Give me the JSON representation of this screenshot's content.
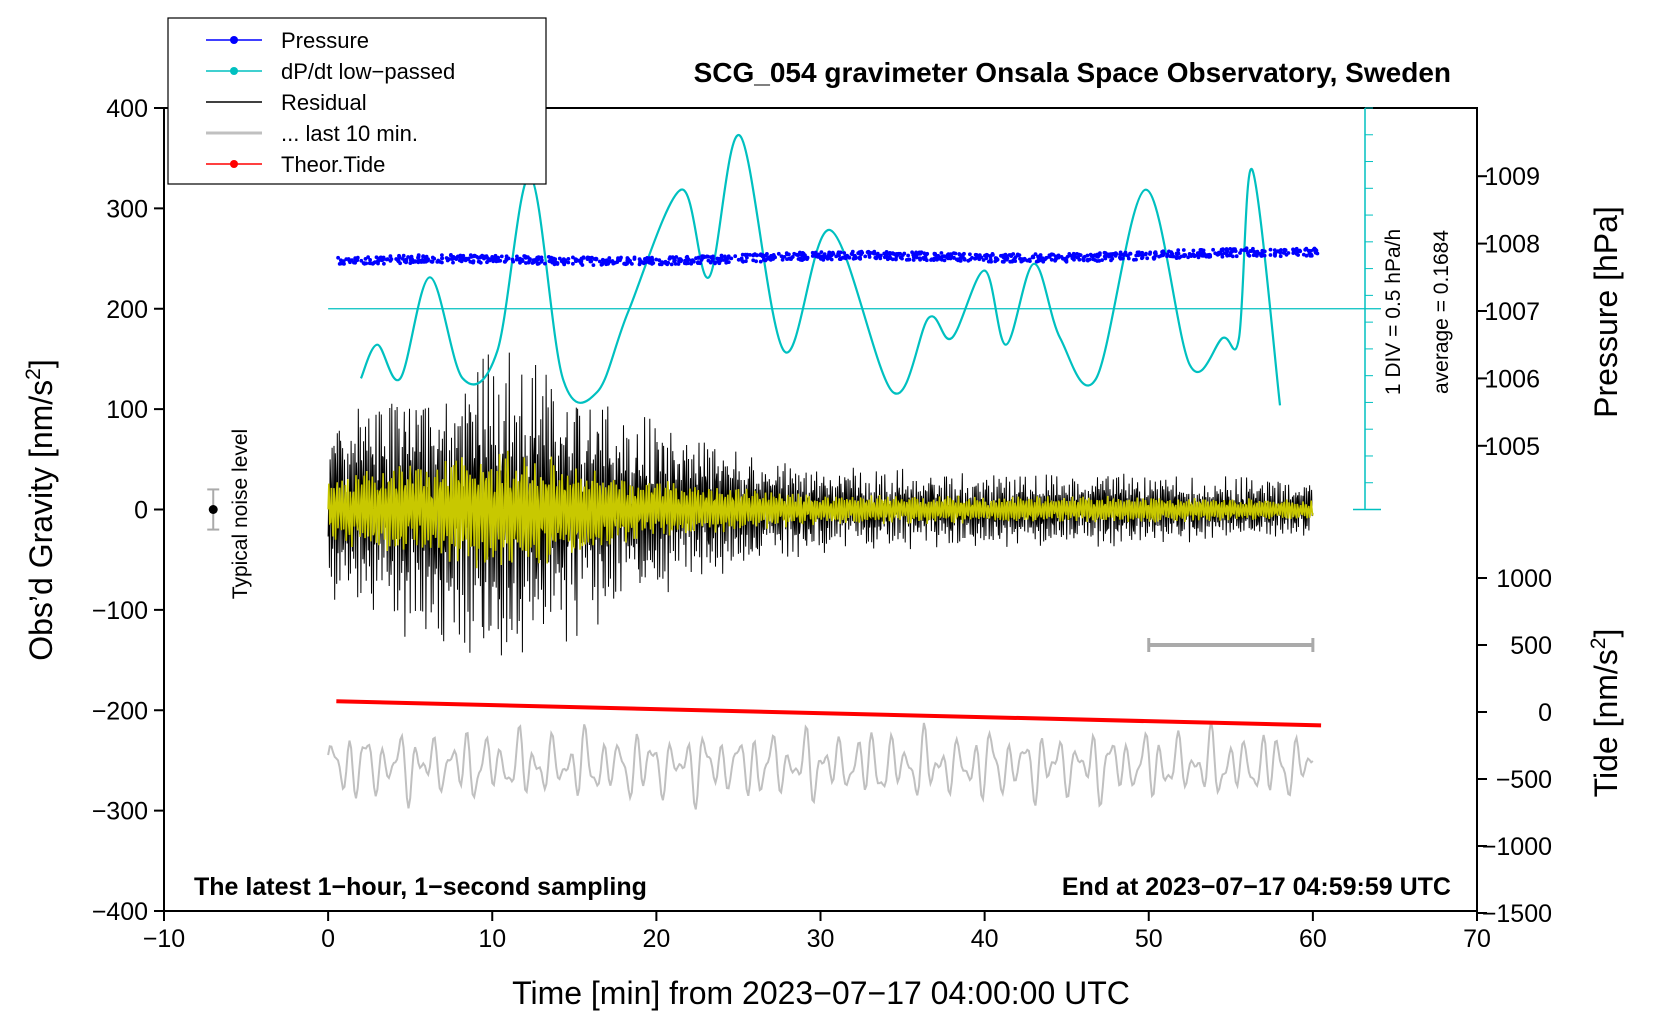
{
  "chart_data": {
    "type": "line",
    "title": "SCG_054 gravimeter Onsala Space Observatory, Sweden",
    "xlabel": "Time [min] from 2023−07−17 04:00:00 UTC",
    "ylabel_left_main": "Obs’d Gravity [nm/s",
    "ylabel_left_sup": "2",
    "ylabel_left_tail": "]",
    "ylabel_right_pressure": "Pressure [hPa]",
    "ylabel_right_tide_main": "Tide [nm/s",
    "ylabel_right_tide_sup": "2",
    "ylabel_right_tide_tail": "]",
    "xlim": [
      -10,
      70
    ],
    "ylim": [
      -400,
      400
    ],
    "pressure_lim": [
      1004,
      1010
    ],
    "tide_lim": [
      -1500,
      1500
    ],
    "x_ticks": [
      -10,
      0,
      10,
      20,
      30,
      40,
      50,
      60,
      70
    ],
    "x_tick_labels": [
      "−10",
      "0",
      "10",
      "20",
      "30",
      "40",
      "50",
      "60",
      "70"
    ],
    "y_ticks": [
      -400,
      -300,
      -200,
      -100,
      0,
      100,
      200,
      300,
      400
    ],
    "y_tick_labels": [
      "−400",
      "−300",
      "−200",
      "−100",
      "0",
      "100",
      "200",
      "300",
      "400"
    ],
    "pressure_ticks": [
      1005,
      1006,
      1007,
      1008,
      1009
    ],
    "pressure_tick_labels": [
      "1005",
      "1006",
      "1007",
      "1008",
      "1009"
    ],
    "tide_ticks": [
      -1500,
      -1000,
      -500,
      0,
      500,
      1000
    ],
    "tide_tick_labels": [
      "−1500",
      "−1000",
      "−500",
      "0",
      "500",
      "1000"
    ],
    "legend": {
      "position": "top-left",
      "entries": [
        {
          "label": "Pressure",
          "color": "#0000ff",
          "marker": true
        },
        {
          "label": "dP/dt low−passed",
          "color": "#00c0c0",
          "marker": true
        },
        {
          "label": "Residual",
          "color": "#000000",
          "marker": false
        },
        {
          "label": "... last 10 min.",
          "color": "#c0c0c0",
          "marker": false
        },
        {
          "label": "Theor.Tide",
          "color": "#ff0000",
          "marker": true
        }
      ]
    },
    "colors": {
      "pressure": "#0000ff",
      "dpdt": "#00c0c0",
      "residual": "#000000",
      "last10": "#c0c0c0",
      "tide": "#ff0000",
      "filtered": "#c8c800",
      "noise_bar": "#aaaaaa"
    },
    "series": {
      "pressure": {
        "name": "Pressure",
        "x_range": [
          0.5,
          60.3
        ],
        "start_hpa": 1007.73,
        "end_hpa": 1007.85,
        "scatter_hpa": 0.06
      },
      "dpdt": {
        "name": "dP/dt low−passed",
        "x": [
          2.0,
          3.0,
          4.4,
          6.2,
          8.2,
          10.3,
          12.3,
          14.3,
          16.4,
          18.3,
          21.5,
          23.2,
          25.1,
          27.8,
          30.6,
          34.4,
          36.6,
          38.0,
          40.0,
          41.3,
          43.0,
          44.6,
          46.8,
          49.8,
          52.5,
          54.5,
          55.5,
          56.3,
          58.0
        ],
        "y": [
          1006.0,
          1006.5,
          1006.0,
          1007.5,
          1006.0,
          1006.4,
          1009.0,
          1006.0,
          1005.8,
          1007.0,
          1008.8,
          1007.5,
          1009.6,
          1006.4,
          1008.2,
          1005.8,
          1006.9,
          1006.6,
          1007.6,
          1006.5,
          1007.7,
          1006.6,
          1006.0,
          1008.8,
          1006.2,
          1006.6,
          1006.6,
          1009.1,
          1005.6
        ]
      },
      "dpdt_reference_hpa_per_h": 0,
      "residual": {
        "name": "Residual",
        "x_range": [
          0,
          60
        ],
        "envelope": [
          {
            "x": 0,
            "amp": 80
          },
          {
            "x": 3,
            "amp": 110
          },
          {
            "x": 6,
            "amp": 120
          },
          {
            "x": 9,
            "amp": 150
          },
          {
            "x": 12,
            "amp": 150
          },
          {
            "x": 16,
            "amp": 110
          },
          {
            "x": 20,
            "amp": 80
          },
          {
            "x": 24,
            "amp": 60
          },
          {
            "x": 30,
            "amp": 40
          },
          {
            "x": 40,
            "amp": 35
          },
          {
            "x": 50,
            "amp": 35
          },
          {
            "x": 60,
            "amp": 25
          }
        ]
      },
      "filtered_residual": {
        "color": "#c8c800",
        "x_range": [
          0,
          60
        ]
      },
      "last10": {
        "name": "... last 10 min.",
        "x_range": [
          0,
          60
        ],
        "mean_gravity_units": -255,
        "amp": 40
      },
      "tide": {
        "name": "Theor.Tide",
        "x": [
          0.5,
          60.5
        ],
        "y": [
          80,
          -100
        ]
      }
    },
    "last10_marker_x": [
      50,
      60
    ],
    "noise": {
      "label": "Typical noise level",
      "x": -7,
      "center": 0,
      "half_width": 20
    },
    "dpdt_scale_text_1": "1 DIV = 0.5 hPa/h",
    "dpdt_scale_text_2": "average = 0.1684",
    "footer_left": "The latest 1−hour, 1−second sampling",
    "footer_right": "End at 2023−07−17 04:59:59 UTC"
  }
}
